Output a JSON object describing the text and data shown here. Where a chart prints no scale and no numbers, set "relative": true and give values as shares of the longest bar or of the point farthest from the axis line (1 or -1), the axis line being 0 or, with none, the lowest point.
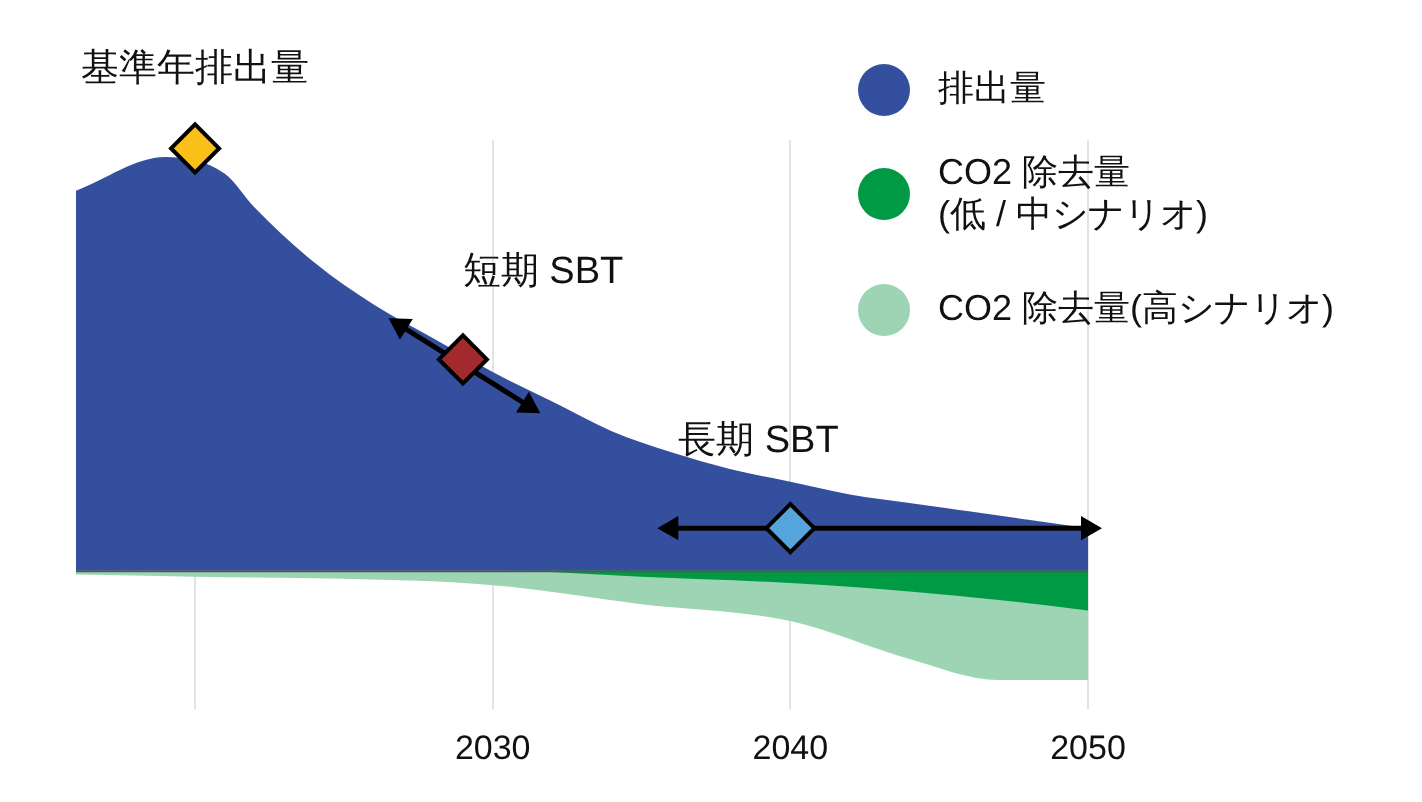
{
  "chart_data": {
    "type": "area",
    "relative": true,
    "grid": "x",
    "legend": "top right",
    "xlim": [
      2016,
      2050
    ],
    "xticks": [
      {
        "value": 2020,
        "label": null
      },
      2030,
      2040,
      2050
    ],
    "annotations": [
      {
        "text": "基準年排出量",
        "x": 2020,
        "y": 1
      },
      {
        "text": "短期 SBT",
        "x": 2029,
        "y": 0.5
      },
      {
        "text": "長期 SBT",
        "x": 2040,
        "y": 0.1
      }
    ],
    "series": [
      {
        "type": "scatter",
        "marker": "diamond",
        "color": "#fbbf1a",
        "x": [
          2020
        ],
        "values": [
          1
        ]
      },
      {
        "type": "scatter",
        "marker": "diamond",
        "color": "#a32a2c",
        "x": [
          2029
        ],
        "values": [
          0.5
        ]
      },
      {
        "type": "scatter",
        "marker": "diamond",
        "color": "#55a5dc",
        "x": [
          2040
        ],
        "values": [
          0.1
        ]
      },
      {
        "type": "line",
        "marker": "triangle",
        "color": "#000000",
        "x": [
          2026.9,
          2031.2
        ],
        "values": [
          0.58,
          0.39
        ]
      },
      {
        "type": "line",
        "marker": "triangle",
        "color": "#000000",
        "x": [
          2036,
          2050
        ],
        "values": [
          0.1,
          0.1
        ]
      },
      {
        "name": "排出量",
        "color": "#354f9f",
        "x": [
          2016,
          2019,
          2021,
          2022,
          2024,
          2026,
          2028,
          2030,
          2032,
          2034,
          2036,
          2038,
          2040,
          2042,
          2044,
          2046,
          2048,
          2050
        ],
        "values": [
          0.9,
          0.98,
          0.94,
          0.86,
          0.73,
          0.63,
          0.55,
          0.47,
          0.4,
          0.33,
          0.28,
          0.24,
          0.21,
          0.18,
          0.16,
          0.14,
          0.12,
          0.1
        ]
      },
      {
        "name": "CO2 除去量 (低 / 中シナリオ)",
        "color": "#009a44",
        "x": [
          2016,
          2020,
          2025,
          2030,
          2035,
          2040,
          2044,
          2047,
          2050
        ],
        "values": [
          0,
          0,
          0,
          0,
          -0.015,
          -0.03,
          -0.05,
          -0.07,
          -0.095
        ]
      },
      {
        "name": "CO2 除去量(高シナリオ)",
        "color": "#9cd4b4",
        "x": [
          2016,
          2020,
          2025,
          2030,
          2035,
          2040,
          2044,
          2047,
          2050
        ],
        "values": [
          -0.01,
          -0.015,
          -0.02,
          -0.035,
          -0.08,
          -0.12,
          -0.21,
          -0.26,
          -0.26
        ]
      }
    ]
  }
}
